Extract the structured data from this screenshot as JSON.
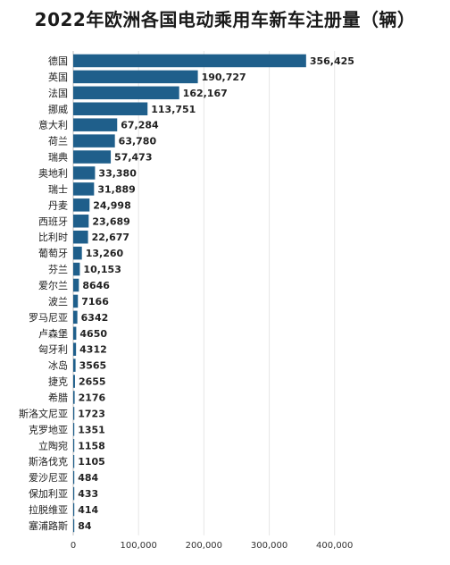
{
  "chart_data": {
    "type": "bar",
    "orientation": "horizontal",
    "title": "2022年欧洲各国电动乘用车新车注册量（辆）",
    "xlabel": "",
    "ylabel": "",
    "xlim": [
      0,
      440000
    ],
    "xticks": [
      0,
      100000,
      200000,
      300000,
      400000
    ],
    "xtick_labels": [
      "0",
      "100,000",
      "200,000",
      "300,000",
      "400,000"
    ],
    "grid": "vertical",
    "bar_color": "#1f5f8b",
    "categories": [
      "德国",
      "英国",
      "法国",
      "挪威",
      "意大利",
      "荷兰",
      "瑞典",
      "奥地利",
      "瑞士",
      "丹麦",
      "西班牙",
      "比利时",
      "葡萄牙",
      "芬兰",
      "爱尔兰",
      "波兰",
      "罗马尼亚",
      "卢森堡",
      "匈牙利",
      "冰岛",
      "捷克",
      "希腊",
      "斯洛文尼亚",
      "克罗地亚",
      "立陶宛",
      "斯洛伐克",
      "爱沙尼亚",
      "保加利亚",
      "拉脱维亚",
      "塞浦路斯"
    ],
    "values": [
      356425,
      190727,
      162167,
      113751,
      67284,
      63780,
      57473,
      33380,
      31889,
      24998,
      23689,
      22677,
      13260,
      10153,
      8646,
      7166,
      6342,
      4650,
      4312,
      3565,
      2655,
      2176,
      1723,
      1351,
      1158,
      1105,
      484,
      433,
      414,
      84
    ],
    "value_labels": [
      "356,425",
      "190,727",
      "162,167",
      "113,751",
      "67,284",
      "63,780",
      "57,473",
      "33,380",
      "31,889",
      "24,998",
      "23,689",
      "22,677",
      "13,260",
      "10,153",
      "8646",
      "7166",
      "6342",
      "4650",
      "4312",
      "3565",
      "2655",
      "2176",
      "1723",
      "1351",
      "1158",
      "1105",
      "484",
      "433",
      "414",
      "84"
    ]
  }
}
